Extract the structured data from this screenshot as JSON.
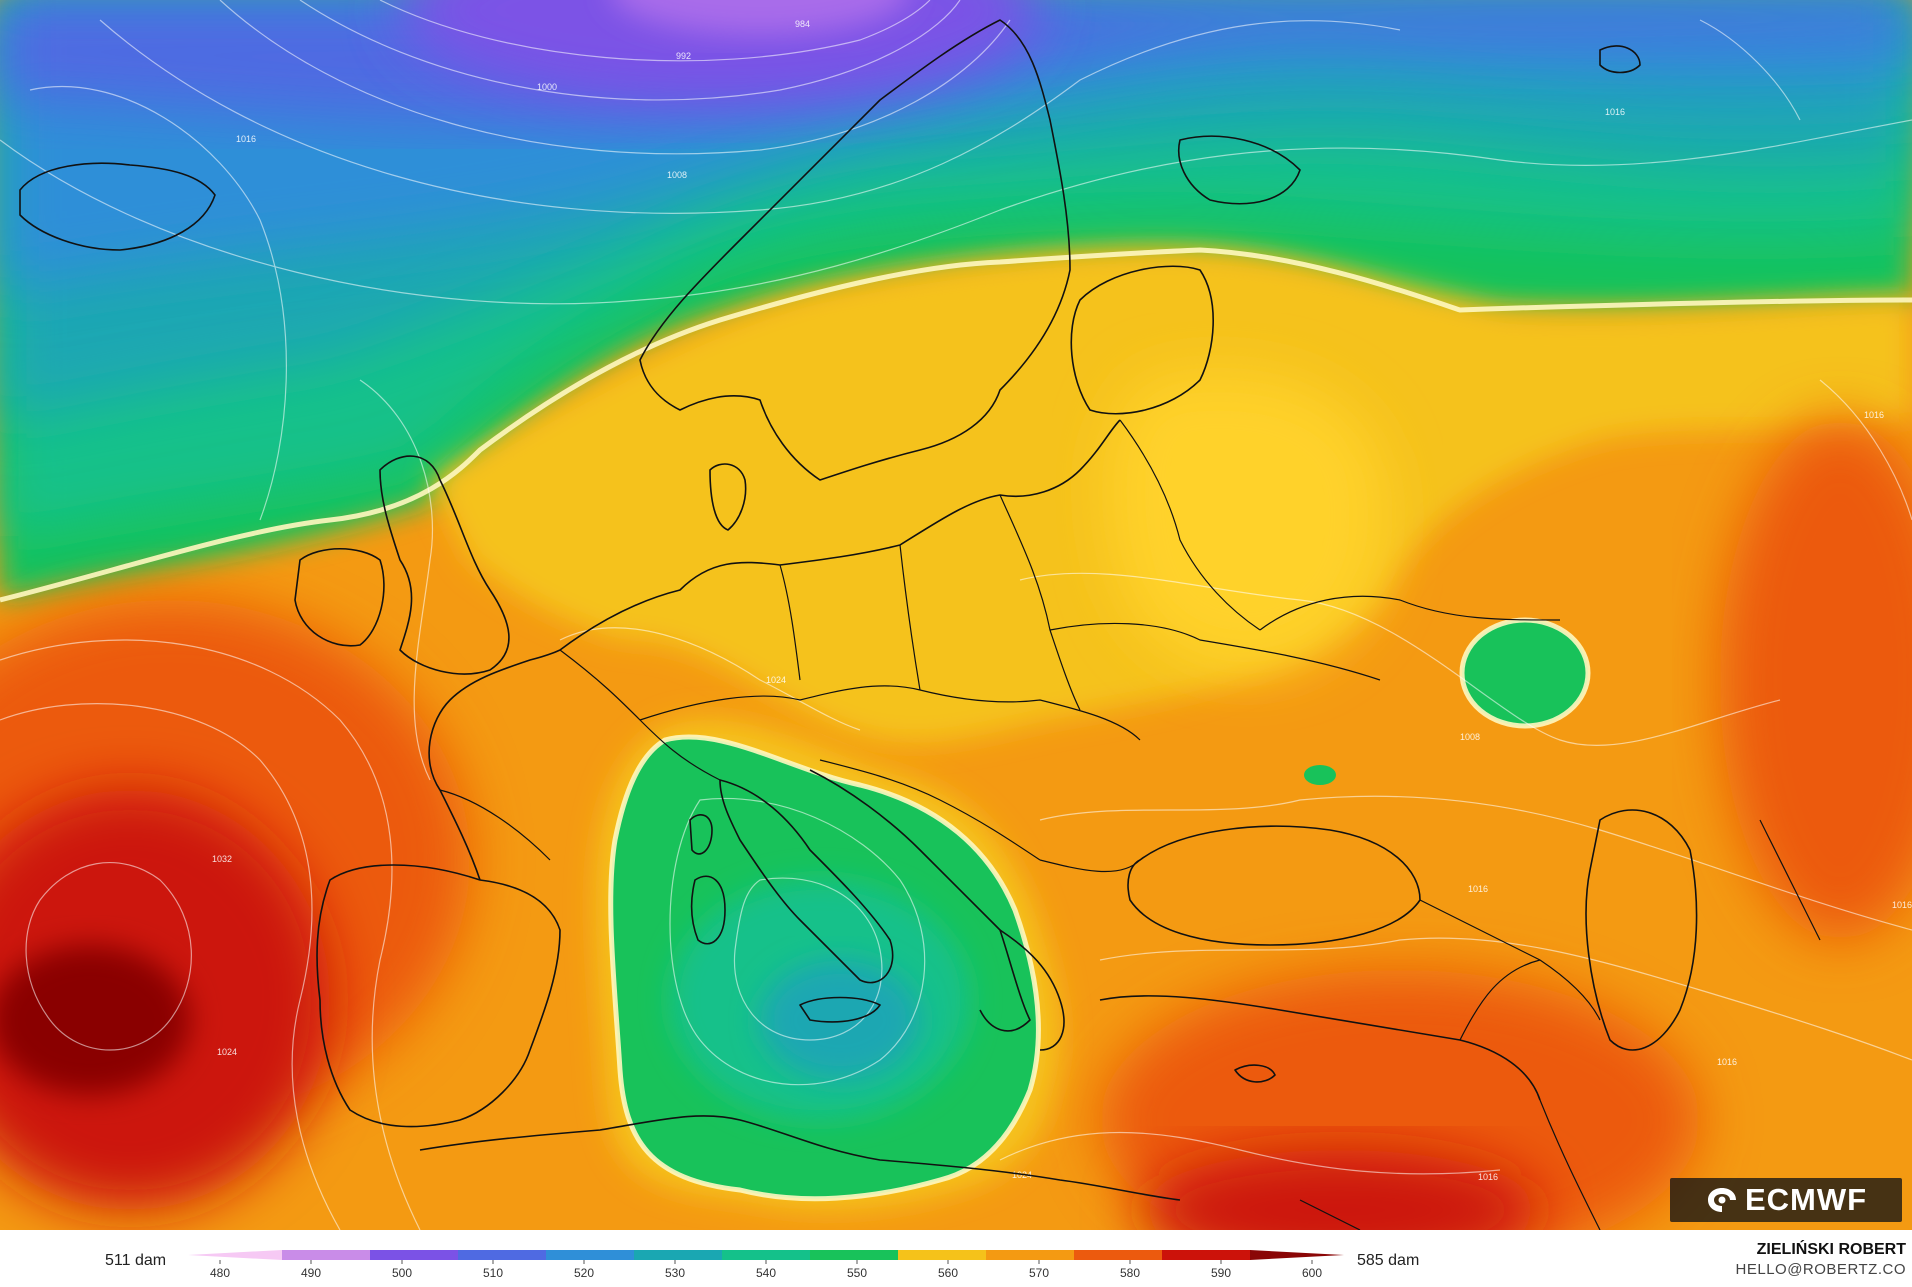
{
  "map": {
    "isobar_labels": [
      "984",
      "992",
      "1000",
      "1008",
      "1016",
      "1016",
      "1024",
      "1024",
      "1032",
      "1016",
      "1016",
      "1008",
      "1016",
      "1016",
      "1016",
      "1024"
    ]
  },
  "logo": {
    "text": "ECMWF",
    "icon": "ecmwf-swirl-icon"
  },
  "legend": {
    "min_label": "511 dam",
    "max_label": "585 dam",
    "ticks": [
      "480",
      "490",
      "500",
      "510",
      "520",
      "530",
      "540",
      "550",
      "560",
      "570",
      "580",
      "590",
      "600"
    ],
    "colors": [
      "#f6c9f4",
      "#c98ce8",
      "#7b52e6",
      "#4f6ae2",
      "#2f8fd8",
      "#1aa7b2",
      "#14c18a",
      "#18c25a",
      "#f5c21a",
      "#f49a12",
      "#ec5a0e",
      "#cc120a",
      "#8a0606"
    ]
  },
  "credits": {
    "author": "ZIELIŃSKI ROBERT",
    "email": "HELLO@ROBERTZ.CO"
  }
}
